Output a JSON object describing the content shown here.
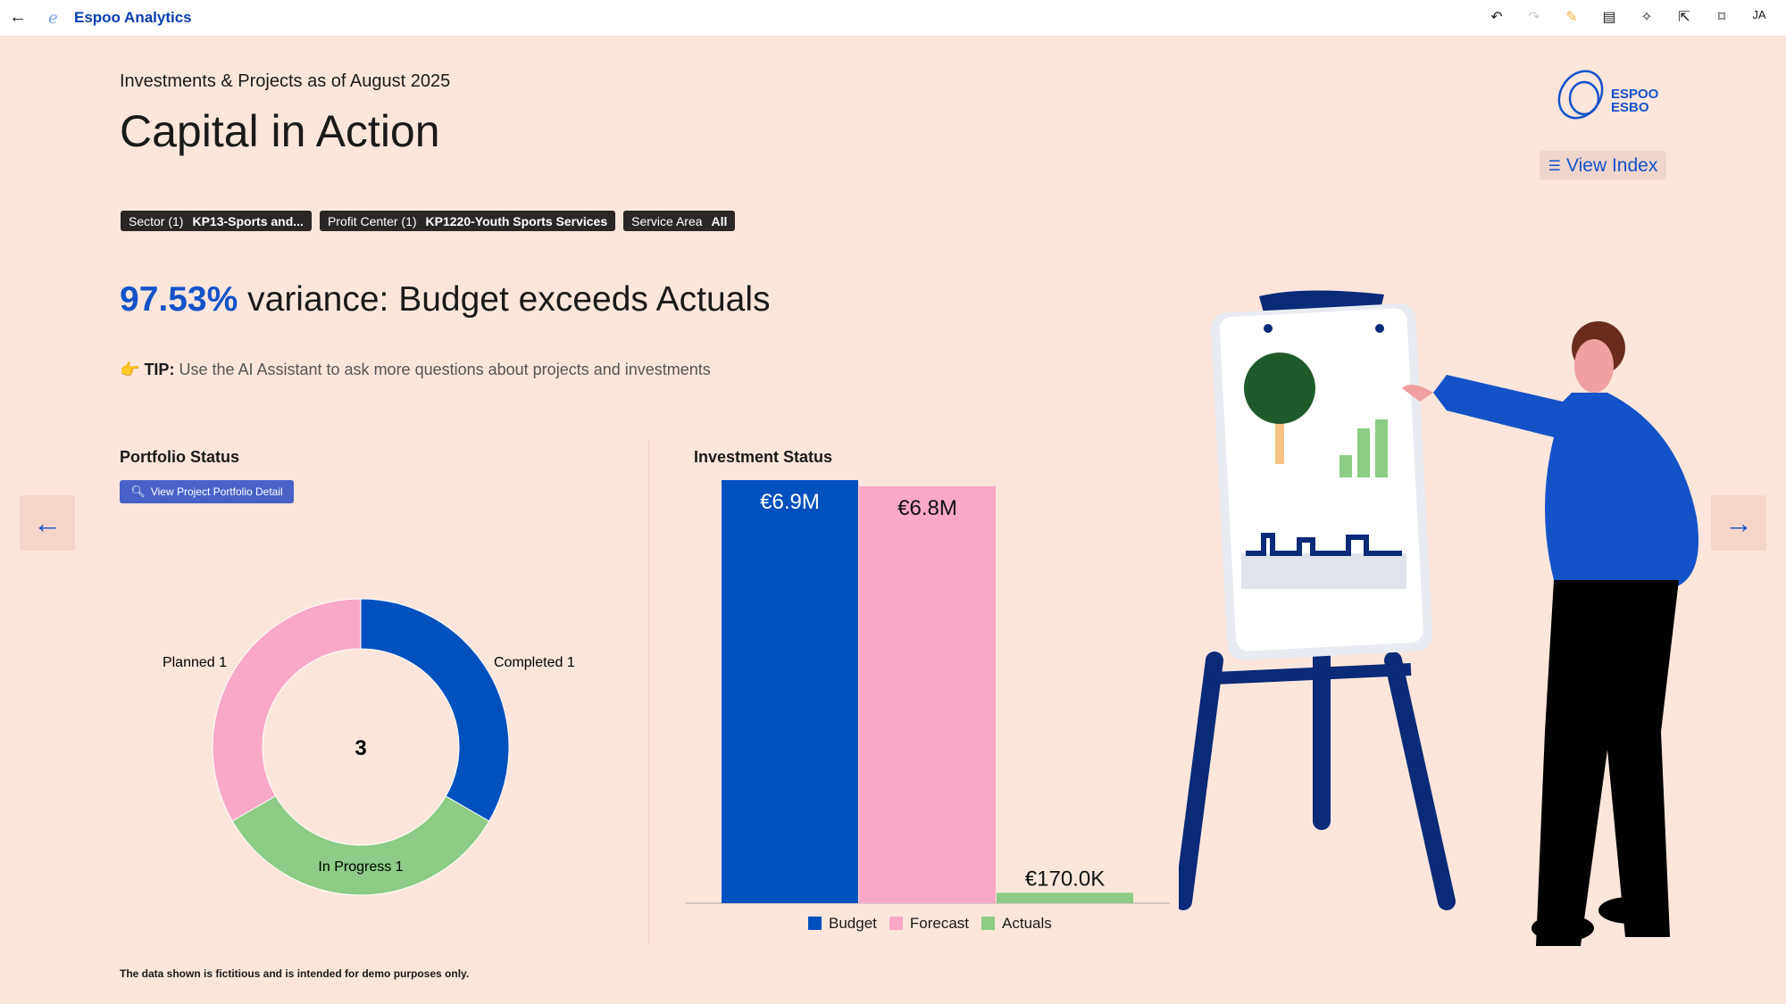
{
  "app": {
    "title": "Espoo Analytics",
    "user_initials": "JA"
  },
  "toolbar": {
    "icons": [
      "undo-icon",
      "redo-icon",
      "edit-icon",
      "comment-icon",
      "ai-sparkle-icon",
      "share-icon",
      "bookmark-icon"
    ]
  },
  "header": {
    "subtitle": "Investments & Projects as of August 2025",
    "title": "Capital in Action",
    "logo_text": "ESPOO ESBO",
    "view_index": "View Index"
  },
  "filters": [
    {
      "label": "Sector (1)",
      "value": "KP13-Sports and..."
    },
    {
      "label": "Profit Center (1)",
      "value": "KP1220-Youth Sports Services"
    },
    {
      "label": "Service Area",
      "value": "All"
    }
  ],
  "variance": {
    "pct": "97.53%",
    "text": "variance: Budget exceeds Actuals"
  },
  "tip": {
    "emoji": "👉",
    "label": "TIP:",
    "text": "Use the AI Assistant to ask more questions about projects and investments"
  },
  "portfolio": {
    "title": "Portfolio Status",
    "button": "View Project Portfolio Detail",
    "total": "3"
  },
  "investment": {
    "title": "Investment Status"
  },
  "footnote": "The data shown is fictitious and is intended for demo purposes only.",
  "colors": {
    "blue": "#0050be",
    "pink": "#f9a8c8",
    "green": "#8dcb86",
    "bg": "#fce6dc"
  },
  "chart_data": [
    {
      "type": "pie",
      "title": "Portfolio Status",
      "center_label": "3",
      "slices": [
        {
          "name": "Completed",
          "value": 1,
          "label": "Completed 1",
          "color": "#0050be"
        },
        {
          "name": "In Progress",
          "value": 1,
          "label": "In Progress 1",
          "color": "#8dcb86"
        },
        {
          "name": "Planned",
          "value": 1,
          "label": "Planned 1",
          "color": "#f9a8c8"
        }
      ]
    },
    {
      "type": "bar",
      "title": "Investment Status",
      "categories": [
        "Budget",
        "Forecast",
        "Actuals"
      ],
      "values": [
        6900000,
        6800000,
        170000
      ],
      "labels": [
        "€6.9M",
        "€6.8M",
        "€170.0K"
      ],
      "colors": [
        "#0050be",
        "#f9a8c8",
        "#8dcb86"
      ],
      "legend": [
        "Budget",
        "Forecast",
        "Actuals"
      ],
      "legend_position": "bottom"
    }
  ]
}
